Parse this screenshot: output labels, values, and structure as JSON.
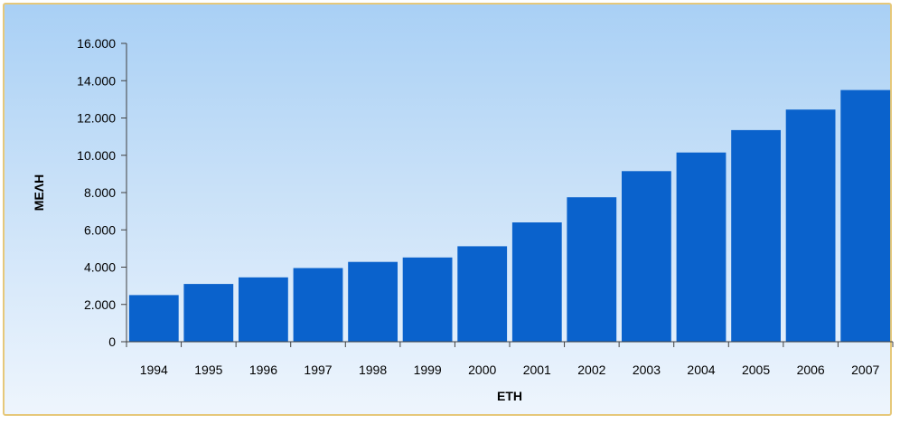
{
  "chart_data": {
    "type": "bar",
    "title": "",
    "xlabel": "ΕΤΗ",
    "ylabel": "ΜΕΛΗ",
    "categories": [
      "1994",
      "1995",
      "1996",
      "1997",
      "1998",
      "1999",
      "2000",
      "2001",
      "2002",
      "2003",
      "2004",
      "2005",
      "2006",
      "2007"
    ],
    "values": [
      2500,
      3100,
      3450,
      3950,
      4280,
      4520,
      5120,
      6400,
      7750,
      9150,
      10150,
      11350,
      12450,
      13500
    ],
    "ylim": [
      0,
      16000
    ],
    "yticks": [
      0,
      2000,
      4000,
      6000,
      8000,
      10000,
      12000,
      14000,
      16000
    ],
    "ytick_labels": [
      "0",
      "2.000",
      "4.000",
      "6.000",
      "8.000",
      "10.000",
      "12.000",
      "14.000",
      "16.000"
    ],
    "grid": false,
    "legend": "none",
    "bar_color": "#0a62cc"
  }
}
